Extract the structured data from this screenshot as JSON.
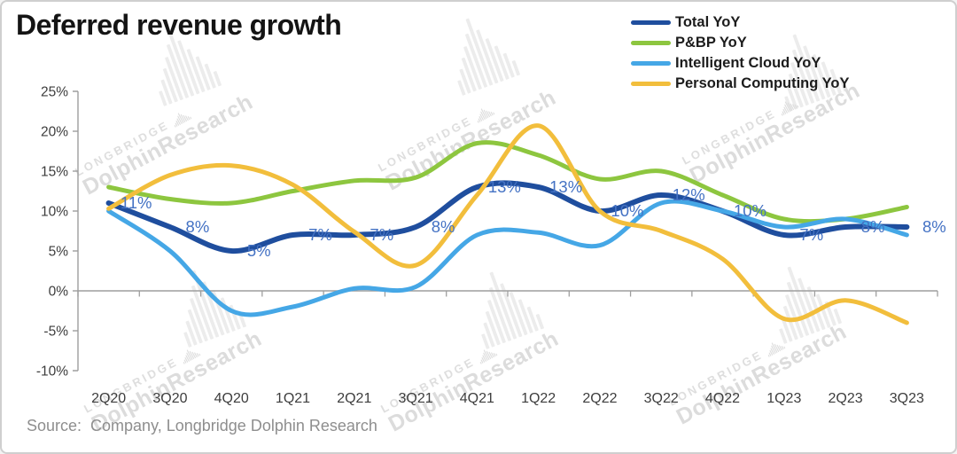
{
  "title": "Deferred revenue growth",
  "source": "Source:  Company, Longbridge Dolphin Research",
  "watermark": {
    "brand": "LONGBRIDGE",
    "name": "DolphinResearch"
  },
  "colors": {
    "background": "#FFFFFF",
    "border": "#CFCFCF",
    "title": "#141414",
    "axis": "#9E9E9E",
    "tick_label": "#3D3D3D",
    "data_label": "#4472C4",
    "source": "#8E8E8E",
    "watermark": "#DEDEDE"
  },
  "chart_data": {
    "type": "line",
    "title": "Deferred revenue growth",
    "categories": [
      "2Q20",
      "3Q20",
      "4Q20",
      "1Q21",
      "2Q21",
      "3Q21",
      "4Q21",
      "1Q22",
      "2Q22",
      "3Q22",
      "4Q22",
      "1Q23",
      "2Q23",
      "3Q23"
    ],
    "series": [
      {
        "name": "Total YoY",
        "color": "#1F4E9E",
        "values": [
          11,
          8,
          5,
          7,
          7,
          8,
          13,
          13,
          10,
          12,
          10,
          7,
          8,
          8
        ],
        "labels": [
          "11%",
          "8%",
          "5%",
          "7%",
          "7%",
          "8%",
          "13%",
          "13%",
          "10%",
          "12%",
          "10%",
          "7%",
          "8%",
          "8%"
        ]
      },
      {
        "name": "P&BP YoY",
        "color": "#8DC63F",
        "values": [
          13,
          11.5,
          11,
          12.5,
          13.8,
          14.2,
          18.5,
          17,
          14,
          15,
          12,
          9,
          9,
          10.5
        ],
        "labels": []
      },
      {
        "name": "Intelligent Cloud YoY",
        "color": "#45A7E6",
        "values": [
          10,
          5,
          -2.5,
          -2,
          0.3,
          0.5,
          7,
          7.3,
          5.7,
          11,
          10,
          8,
          9,
          7
        ],
        "labels": []
      },
      {
        "name": "Personal Computing YoY",
        "color": "#F2BE3C",
        "values": [
          10.3,
          14.5,
          15.7,
          13.3,
          7.4,
          3.2,
          12,
          20.7,
          10,
          7.5,
          4,
          -3.5,
          -1.2,
          -4
        ],
        "labels": []
      }
    ],
    "ylim": [
      -10,
      25
    ],
    "yticks": [
      "25%",
      "20%",
      "15%",
      "10%",
      "5%",
      "0%",
      "-5%",
      "-10%"
    ],
    "grid": false,
    "legend_position": "top-right",
    "smooth_lines": true
  }
}
